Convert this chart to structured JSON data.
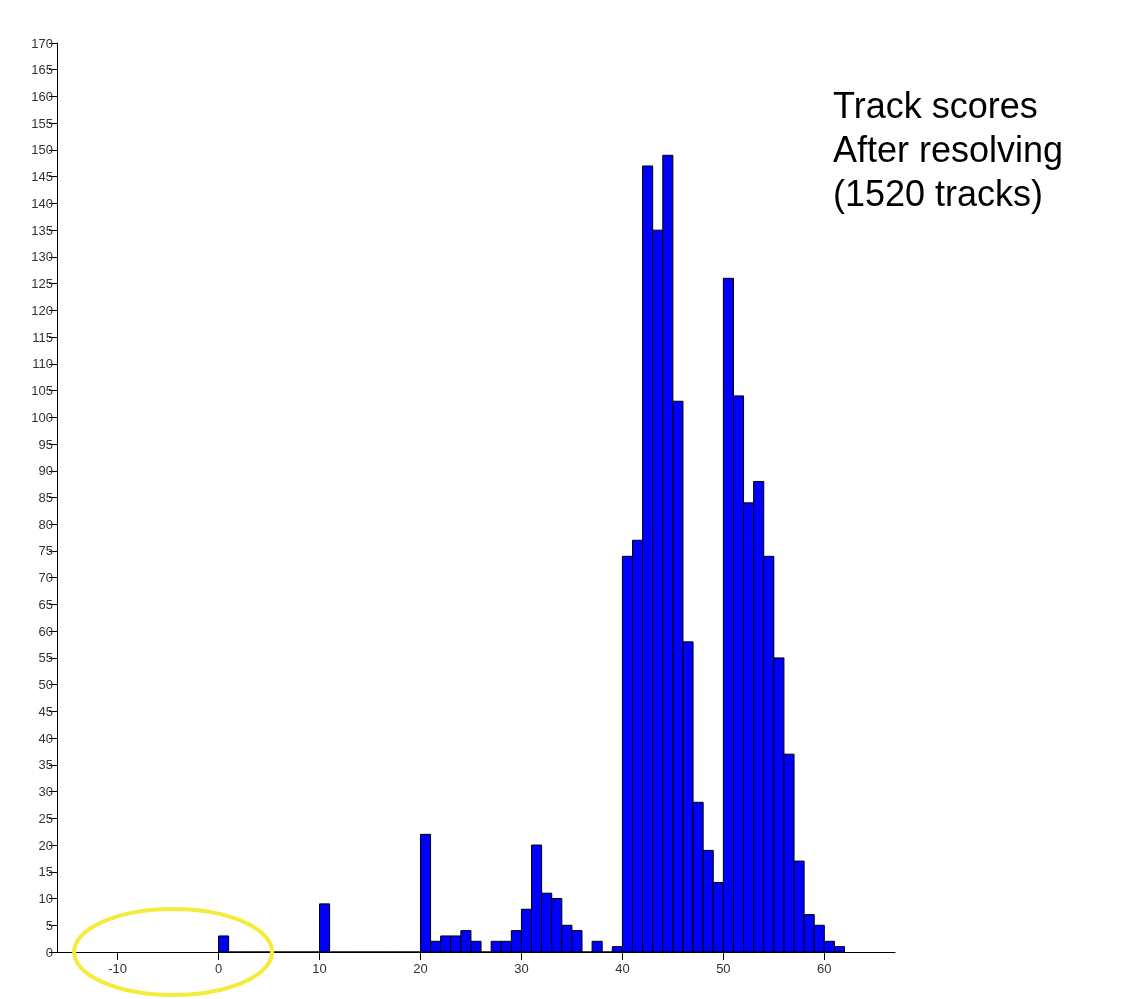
{
  "chart_data": {
    "type": "histogram",
    "title": "Track scores",
    "subtitle": "After resolving (1520 tracks)",
    "bins": [
      0,
      1,
      2,
      3,
      4,
      5,
      6,
      7,
      8,
      9,
      10,
      11,
      12,
      13,
      14,
      15,
      16,
      17,
      18,
      19,
      20,
      21,
      22,
      23,
      24,
      25,
      26,
      27,
      28,
      29,
      30,
      31,
      32,
      33,
      34,
      35,
      36,
      37,
      38,
      39,
      40,
      41,
      42,
      43,
      44,
      45,
      46,
      47,
      48,
      49,
      50,
      51,
      52,
      53,
      54,
      55,
      56,
      57,
      58,
      59,
      60,
      61,
      62
    ],
    "values": [
      3,
      0,
      0,
      0,
      0,
      0,
      0,
      0,
      0,
      0,
      9,
      0,
      0,
      0,
      0,
      0,
      0,
      0,
      0,
      0,
      22,
      2,
      3,
      3,
      4,
      2,
      0,
      2,
      2,
      4,
      8,
      20,
      11,
      10,
      5,
      4,
      0,
      2,
      0,
      1,
      74,
      77,
      147,
      135,
      149,
      103,
      58,
      28,
      19,
      13,
      126,
      104,
      84,
      88,
      74,
      55,
      37,
      17,
      7,
      5,
      2,
      1
    ],
    "color": "#0000ff",
    "xlim": [
      -16,
      67
    ],
    "xticks": [
      -10,
      0,
      10,
      20,
      30,
      40,
      50,
      60
    ],
    "ylim": [
      0,
      170
    ],
    "yticks": [
      0,
      5,
      10,
      15,
      20,
      25,
      30,
      35,
      40,
      45,
      50,
      55,
      60,
      65,
      70,
      75,
      80,
      85,
      90,
      95,
      100,
      105,
      110,
      115,
      120,
      125,
      130,
      135,
      140,
      145,
      150,
      155,
      160,
      165,
      170
    ],
    "grid": false
  }
}
